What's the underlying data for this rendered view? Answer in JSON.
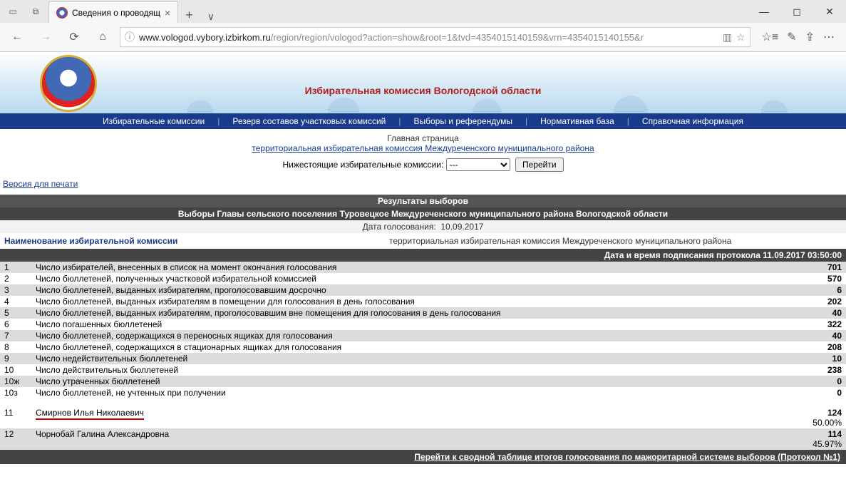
{
  "browser": {
    "tab_title": "Сведения о проводящ",
    "url_host": "www.vologod.vybory.izbirkom.ru",
    "url_path": "/region/region/vologod?action=show&root=1&tvd=4354015140159&vrn=4354015140155&r"
  },
  "header": {
    "org_title": "Избирательная комиссия Вологодской области"
  },
  "menu": {
    "items": [
      "Избирательные комиссии",
      "Резерв составов участковых комиссий",
      "Выборы и референдумы",
      "Нормативная база",
      "Справочная информация"
    ]
  },
  "subnav": {
    "home": "Главная страница",
    "territorial_link": "территориальная избирательная комиссия Междуреченского муниципального района",
    "lower_label": "Нижестоящие избирательные комиссии:",
    "select_placeholder": "---",
    "go_button": "Перейти"
  },
  "print_link": "Версия для печати",
  "bars": {
    "results_title": "Результаты выборов",
    "election_title": "Выборы Главы сельского поселения Туровецкое Междуреченского муниципального района Вологодской области",
    "vote_date_label": "Дата голосования:",
    "vote_date": "10.09.2017",
    "commission_label": "Наименование избирательной комиссии",
    "commission_name": "территориальная избирательная комиссия Междуреченского муниципального района",
    "protocol_ts": "Дата и время подписания протокола 11.09.2017 03:50:00"
  },
  "rows": [
    {
      "n": "1",
      "label": "Число избирателей, внесенных в список на момент окончания голосования",
      "value": "701"
    },
    {
      "n": "2",
      "label": "Число бюллетеней, полученных участковой избирательной комиссией",
      "value": "570"
    },
    {
      "n": "3",
      "label": "Число бюллетеней, выданных избирателям, проголосовавшим досрочно",
      "value": "6"
    },
    {
      "n": "4",
      "label": "Число бюллетеней, выданных избирателям в помещении для голосования в день голосования",
      "value": "202"
    },
    {
      "n": "5",
      "label": "Число бюллетеней, выданных избирателям, проголосовавшим вне помещения для голосования в день голосования",
      "value": "40"
    },
    {
      "n": "6",
      "label": "Число погашенных бюллетеней",
      "value": "322"
    },
    {
      "n": "7",
      "label": "Число бюллетеней, содержащихся в переносных ящиках для голосования",
      "value": "40"
    },
    {
      "n": "8",
      "label": "Число бюллетеней, содержащихся в стационарных ящиках для голосования",
      "value": "208"
    },
    {
      "n": "9",
      "label": "Число недействительных бюллетеней",
      "value": "10"
    },
    {
      "n": "10",
      "label": "Число действительных бюллетеней",
      "value": "238"
    },
    {
      "n": "10ж",
      "label": "Число утраченных бюллетеней",
      "value": "0"
    },
    {
      "n": "10з",
      "label": "Число бюллетеней, не учтенных при получении",
      "value": "0"
    }
  ],
  "candidates": [
    {
      "n": "11",
      "name": "Смирнов Илья Николаевич",
      "votes": "124",
      "pct": "50.00%",
      "winner": true
    },
    {
      "n": "12",
      "name": "Чорнобай Галина Александровна",
      "votes": "114",
      "pct": "45.97%",
      "winner": false
    }
  ],
  "footer_link": "Перейти к сводной таблице итогов голосования по мажоритарной системе выборов (Протокол №1)",
  "colors": {
    "menu_bg": "#1a3b8c",
    "bar_dark": "#555555",
    "bar_darker": "#444444",
    "row_even": "#dcdcdc",
    "link": "#1a3b8c",
    "accent_red": "#b02020"
  }
}
